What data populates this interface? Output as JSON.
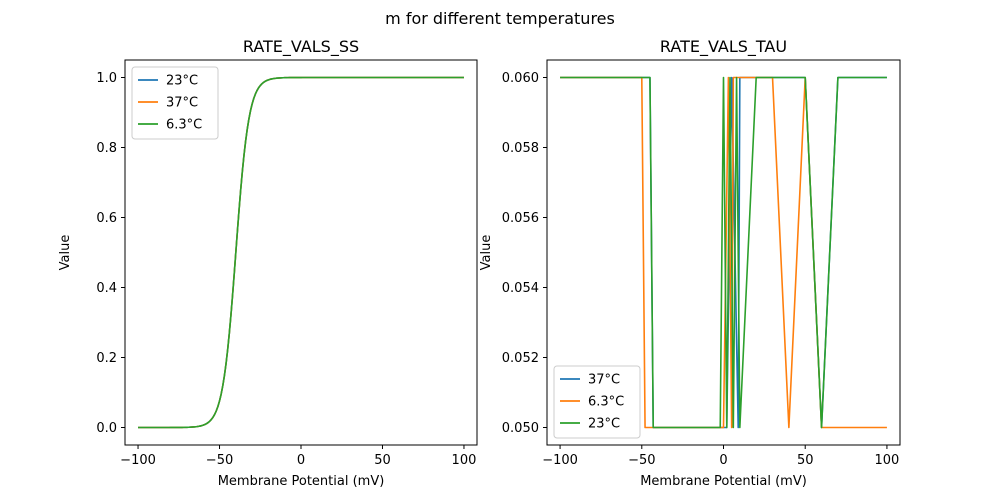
{
  "figure": {
    "suptitle": "m for different temperatures"
  },
  "chart_data": [
    {
      "type": "line",
      "title": "RATE_VALS_SS",
      "xlabel": "Membrane Potential (mV)",
      "ylabel": "Value",
      "xlim": [
        -108,
        108
      ],
      "ylim": [
        -0.05,
        1.05
      ],
      "xticks": [
        -100,
        -50,
        0,
        50,
        100
      ],
      "xtick_labels": [
        "−100",
        "−50",
        "0",
        "50",
        "100"
      ],
      "yticks": [
        0.0,
        0.2,
        0.4,
        0.6,
        0.8,
        1.0
      ],
      "ytick_labels": [
        "0.0",
        "0.2",
        "0.4",
        "0.6",
        "0.8",
        "1.0"
      ],
      "grid": false,
      "legend_position": "upper-left",
      "curve": {
        "kind": "sigmoid",
        "midpoint_mV": -40,
        "slope_mV": 4,
        "x_start": -100,
        "x_end": 100,
        "samples": 201
      },
      "series": [
        {
          "name": "23°C",
          "color": "#1f77b4"
        },
        {
          "name": "37°C",
          "color": "#ff7f0e"
        },
        {
          "name": "6.3°C",
          "color": "#2ca02c"
        }
      ]
    },
    {
      "type": "line",
      "title": "RATE_VALS_TAU",
      "xlabel": "Membrane Potential (mV)",
      "ylabel": "Value",
      "xlim": [
        -108,
        108
      ],
      "ylim": [
        0.0495,
        0.0605
      ],
      "xticks": [
        -100,
        -50,
        0,
        50,
        100
      ],
      "xtick_labels": [
        "−100",
        "−50",
        "0",
        "50",
        "100"
      ],
      "yticks": [
        0.05,
        0.052,
        0.054,
        0.056,
        0.058,
        0.06
      ],
      "ytick_labels": [
        "0.050",
        "0.052",
        "0.054",
        "0.056",
        "0.058",
        "0.060"
      ],
      "grid": false,
      "legend_position": "lower-left",
      "series": [
        {
          "name": "37°C",
          "color": "#1f77b4",
          "x": [
            -100,
            -45,
            -43,
            0,
            2,
            5,
            9,
            10,
            20,
            49,
            50,
            60,
            70,
            100
          ],
          "y": [
            0.06,
            0.06,
            0.05,
            0.05,
            0.05,
            0.06,
            0.05,
            0.06,
            0.06,
            0.06,
            0.06,
            0.05,
            0.06,
            0.06
          ]
        },
        {
          "name": "6.3°C",
          "color": "#ff7f0e",
          "x": [
            -100,
            -50,
            -48,
            0,
            3,
            5,
            6,
            10,
            30,
            40,
            50,
            60,
            100
          ],
          "y": [
            0.06,
            0.06,
            0.05,
            0.05,
            0.06,
            0.05,
            0.06,
            0.06,
            0.06,
            0.05,
            0.06,
            0.05,
            0.05
          ]
        },
        {
          "name": "23°C",
          "color": "#2ca02c",
          "x": [
            -100,
            -45,
            -43,
            -2,
            0,
            2,
            4,
            6,
            8,
            10,
            20,
            50,
            60,
            70,
            100
          ],
          "y": [
            0.06,
            0.06,
            0.05,
            0.05,
            0.06,
            0.05,
            0.06,
            0.05,
            0.06,
            0.05,
            0.06,
            0.06,
            0.05,
            0.06,
            0.06
          ]
        }
      ]
    }
  ]
}
